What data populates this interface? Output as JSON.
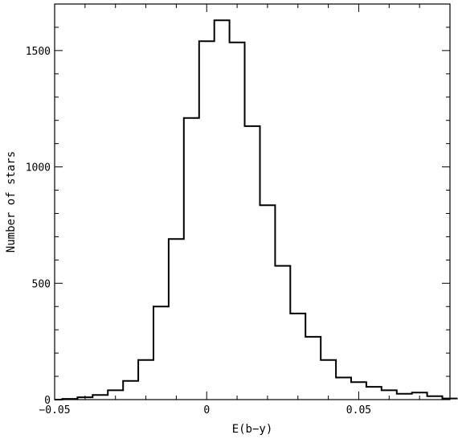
{
  "chart_data": {
    "type": "histogram",
    "title": "",
    "xlabel": "E(b−y)",
    "ylabel": "Number of stars",
    "xlim": [
      -0.05,
      0.08
    ],
    "ylim": [
      0,
      1700
    ],
    "grid": false,
    "legend": "none",
    "line_color": "#000000",
    "x_ticks": [
      {
        "value": -0.05,
        "label": "−0.05"
      },
      {
        "value": 0,
        "label": "0"
      },
      {
        "value": 0.05,
        "label": "0.05"
      }
    ],
    "y_ticks": [
      {
        "value": 0,
        "label": "0"
      },
      {
        "value": 500,
        "label": "500"
      },
      {
        "value": 1000,
        "label": "1000"
      },
      {
        "value": 1500,
        "label": "1500"
      }
    ],
    "bin_width": 0.005,
    "bin_edges": [
      -0.0475,
      -0.0425,
      -0.0375,
      -0.0325,
      -0.0275,
      -0.0225,
      -0.0175,
      -0.0125,
      -0.0075,
      -0.0025,
      0.0025,
      0.0075,
      0.0125,
      0.0175,
      0.0225,
      0.0275,
      0.0325,
      0.0375,
      0.0425,
      0.0475,
      0.0525,
      0.0575,
      0.0625,
      0.0675,
      0.0725,
      0.0775,
      0.0825
    ],
    "counts": [
      3,
      10,
      20,
      40,
      80,
      170,
      400,
      690,
      1210,
      1540,
      1630,
      1535,
      1175,
      835,
      575,
      370,
      270,
      170,
      95,
      75,
      55,
      40,
      25,
      30,
      15,
      5
    ]
  }
}
